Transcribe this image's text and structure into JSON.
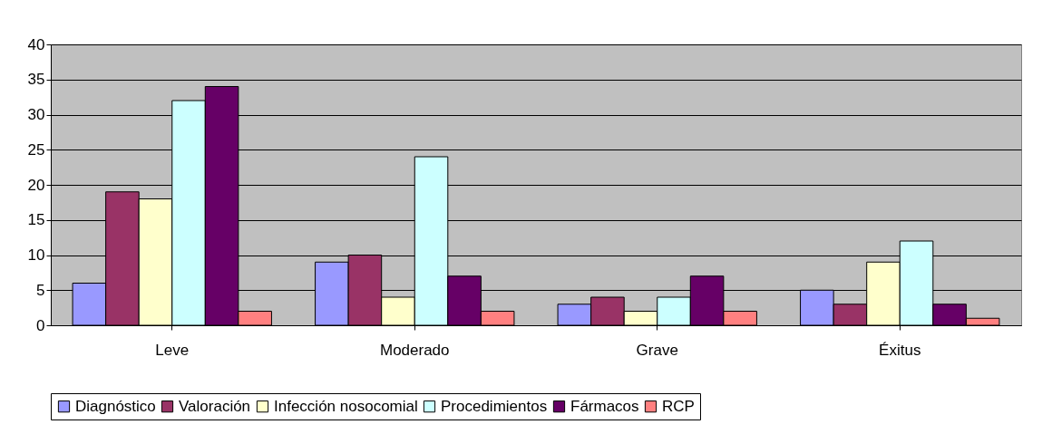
{
  "chart_data": {
    "type": "bar",
    "categories": [
      "Leve",
      "Moderado",
      "Grave",
      "Éxitus"
    ],
    "series": [
      {
        "name": "Diagnóstico",
        "color": "#9999ff",
        "values": [
          6,
          9,
          3,
          5
        ]
      },
      {
        "name": "Valoración",
        "color": "#993366",
        "values": [
          19,
          10,
          4,
          3
        ]
      },
      {
        "name": "Infección nosocomial",
        "color": "#ffffcc",
        "values": [
          18,
          4,
          2,
          9
        ]
      },
      {
        "name": "Procedimientos",
        "color": "#ccffff",
        "values": [
          32,
          24,
          4,
          12
        ]
      },
      {
        "name": "Fármacos",
        "color": "#660066",
        "values": [
          34,
          7,
          7,
          3
        ]
      },
      {
        "name": "RCP",
        "color": "#ff8080",
        "values": [
          2,
          2,
          2,
          1
        ]
      }
    ],
    "ylim": [
      0,
      40
    ],
    "yticks": [
      0,
      5,
      10,
      15,
      20,
      25,
      30,
      35,
      40
    ],
    "grid": "y",
    "legend": "bottom"
  }
}
